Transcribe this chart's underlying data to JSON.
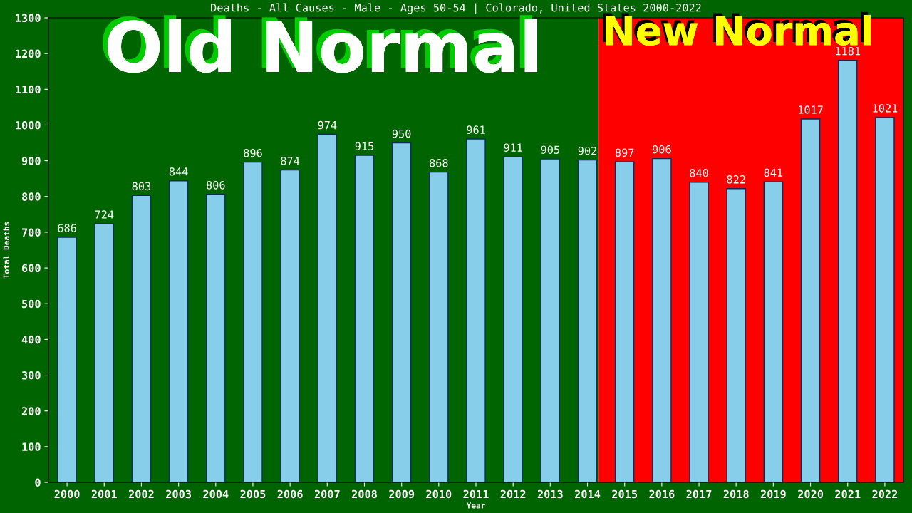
{
  "chart_data": {
    "type": "bar",
    "title": "Deaths - All Causes - Male - Ages 50-54 | Colorado, United States 2000-2022",
    "xlabel": "Year",
    "ylabel": "Total Deaths",
    "categories": [
      "2000",
      "2001",
      "2002",
      "2003",
      "2004",
      "2005",
      "2006",
      "2007",
      "2008",
      "2009",
      "2010",
      "2011",
      "2012",
      "2013",
      "2014",
      "2015",
      "2016",
      "2017",
      "2018",
      "2019",
      "2020",
      "2021",
      "2022"
    ],
    "values": [
      686,
      724,
      803,
      844,
      806,
      896,
      874,
      974,
      915,
      950,
      868,
      961,
      911,
      905,
      902,
      897,
      906,
      840,
      822,
      841,
      1017,
      1181,
      1021
    ],
    "color": "#87ceeb",
    "ylim": [
      0,
      1300
    ],
    "yticks": [
      0,
      100,
      200,
      300,
      400,
      500,
      600,
      700,
      800,
      900,
      1000,
      1100,
      1200,
      1300
    ],
    "grid": false,
    "data_labels": true,
    "bands": [
      {
        "axis": "x",
        "from": "2000",
        "to": "2014",
        "label": "Old Normal",
        "color": "#006400"
      },
      {
        "axis": "x",
        "from": "2014",
        "to": "2022",
        "label": "New Normal",
        "color": "#ff0000"
      }
    ]
  }
}
